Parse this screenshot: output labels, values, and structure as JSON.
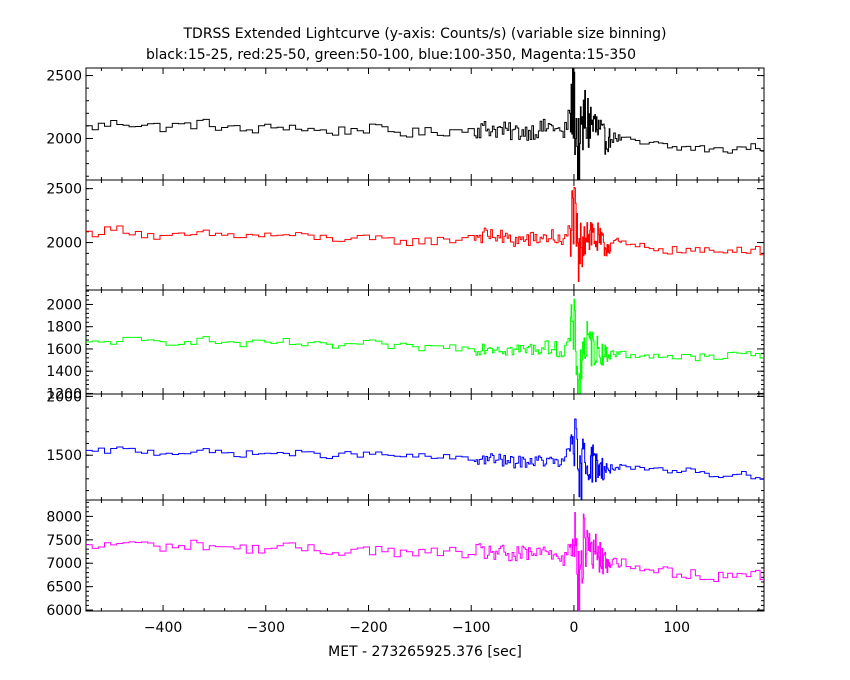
{
  "chart_data": {
    "type": "line",
    "title": "TDRSS Extended Lightcurve (y-axis: Counts/s) (variable size binning)",
    "subtitle": "black:15-25, red:25-50, green:50-100, blue:100-350, Magenta:15-350",
    "xlabel": "MET - 273265925.376 [sec]",
    "xlim": [
      -475,
      185
    ],
    "x_ticks": [
      -400,
      -300,
      -200,
      -100,
      0,
      100
    ],
    "x_tick_labels": [
      "−400",
      "−300",
      "−200",
      "−100",
      "0",
      "100"
    ],
    "grid": false,
    "series": [
      {
        "color": "#000000",
        "ylim": [
          1670,
          2560
        ],
        "y_ticks": [
          2000,
          2500
        ],
        "y_tick_labels": [
          "2000",
          "2500"
        ],
        "baseline_start": 2100,
        "baseline_end": 1930,
        "noise": 40,
        "peak_amplitude": 380,
        "x": [
          -475,
          -440,
          -400,
          -360,
          -320,
          -280,
          -240,
          -200,
          -160,
          -120,
          -100,
          -80,
          -60,
          -40,
          -20,
          -10,
          0,
          5,
          10,
          20,
          30,
          40,
          60,
          80,
          100,
          120,
          140,
          160,
          185
        ],
        "y": [
          2080,
          2130,
          2090,
          2120,
          2060,
          2100,
          2050,
          2080,
          2040,
          2060,
          2070,
          2080,
          2050,
          2060,
          2100,
          2020,
          2300,
          1800,
          2150,
          2100,
          1980,
          2010,
          1960,
          1950,
          1920,
          1930,
          1900,
          1920,
          1940
        ]
      },
      {
        "color": "#ff0000",
        "ylim": [
          1560,
          2580
        ],
        "y_ticks": [
          2000,
          2500
        ],
        "y_tick_labels": [
          "2000",
          "2500"
        ],
        "baseline_start": 2080,
        "baseline_end": 1930,
        "noise": 40,
        "peak_amplitude": 360,
        "x": [
          -475,
          -440,
          -400,
          -360,
          -320,
          -280,
          -240,
          -200,
          -160,
          -120,
          -100,
          -80,
          -60,
          -40,
          -20,
          -10,
          0,
          5,
          10,
          20,
          30,
          40,
          60,
          80,
          100,
          120,
          140,
          160,
          185
        ],
        "y": [
          2080,
          2130,
          2040,
          2080,
          2060,
          2070,
          2040,
          2030,
          2010,
          2020,
          2060,
          2070,
          2020,
          2030,
          2060,
          1980,
          2250,
          1800,
          2150,
          2050,
          1950,
          2010,
          1960,
          1950,
          1920,
          1930,
          1900,
          1950,
          1920
        ]
      },
      {
        "color": "#00ff00",
        "ylim": [
          1195,
          2130
        ],
        "y_ticks": [
          1200,
          1400,
          1600,
          1800,
          2000
        ],
        "y_tick_labels": [
          "1200",
          "1400",
          "1600",
          "1800",
          "2000"
        ],
        "baseline_start": 1650,
        "baseline_end": 1540,
        "noise": 35,
        "peak_amplitude": 300,
        "x": [
          -475,
          -440,
          -400,
          -360,
          -320,
          -280,
          -240,
          -200,
          -160,
          -120,
          -100,
          -80,
          -60,
          -40,
          -20,
          -10,
          0,
          5,
          10,
          20,
          30,
          40,
          60,
          80,
          100,
          120,
          140,
          160,
          185
        ],
        "y": [
          1640,
          1680,
          1660,
          1680,
          1640,
          1660,
          1620,
          1650,
          1610,
          1620,
          1600,
          1620,
          1590,
          1600,
          1620,
          1560,
          1800,
          1300,
          1650,
          1600,
          1550,
          1560,
          1540,
          1550,
          1520,
          1530,
          1510,
          1560,
          1550
        ]
      },
      {
        "color": "#0000ff",
        "ylim": [
          1120,
          2020
        ],
        "y_ticks": [
          1500,
          2000
        ],
        "y_tick_labels": [
          "1500",
          "2000"
        ],
        "baseline_start": 1530,
        "baseline_end": 1330,
        "noise": 28,
        "peak_amplitude": 300,
        "x": [
          -475,
          -440,
          -400,
          -360,
          -320,
          -280,
          -240,
          -200,
          -160,
          -120,
          -100,
          -80,
          -60,
          -40,
          -20,
          -10,
          0,
          5,
          10,
          20,
          30,
          40,
          60,
          80,
          100,
          120,
          140,
          160,
          185
        ],
        "y": [
          1520,
          1550,
          1520,
          1530,
          1510,
          1520,
          1500,
          1510,
          1490,
          1480,
          1460,
          1470,
          1440,
          1450,
          1450,
          1420,
          1700,
          1200,
          1500,
          1420,
          1380,
          1400,
          1380,
          1370,
          1360,
          1370,
          1330,
          1340,
          1320
        ]
      },
      {
        "color": "#ff00ff",
        "ylim": [
          5980,
          8350
        ],
        "y_ticks": [
          6000,
          6500,
          7000,
          7500,
          8000
        ],
        "y_tick_labels": [
          "6000",
          "6500",
          "7000",
          "7500",
          "8000"
        ],
        "baseline_start": 7350,
        "baseline_end": 6700,
        "noise": 110,
        "peak_amplitude": 900,
        "x": [
          -475,
          -440,
          -400,
          -360,
          -320,
          -280,
          -240,
          -200,
          -160,
          -120,
          -100,
          -80,
          -60,
          -40,
          -20,
          -10,
          0,
          5,
          10,
          20,
          30,
          40,
          60,
          80,
          100,
          120,
          140,
          160,
          185
        ],
        "y": [
          7300,
          7450,
          7350,
          7400,
          7300,
          7350,
          7250,
          7300,
          7200,
          7250,
          7200,
          7250,
          7150,
          7200,
          7250,
          7050,
          7900,
          6300,
          7500,
          7250,
          7000,
          7050,
          6900,
          6850,
          6800,
          6750,
          6700,
          6800,
          6750
        ]
      }
    ]
  }
}
